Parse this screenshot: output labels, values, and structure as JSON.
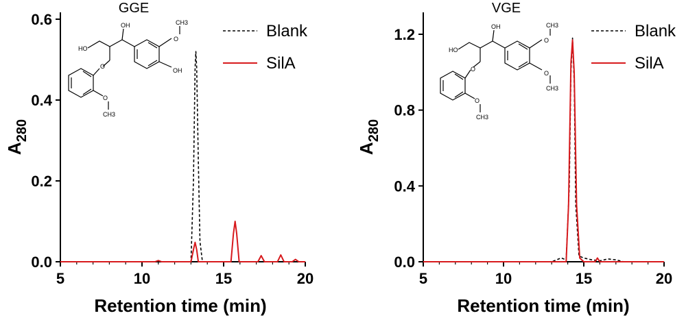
{
  "chart_data": [
    {
      "type": "line",
      "title": "GGE",
      "xlabel": "Retention time (min)",
      "ylabel_main": "A",
      "ylabel_sub": "280",
      "xlim": [
        5,
        20
      ],
      "ylim": [
        0,
        0.6
      ],
      "x_ticks": [
        "5",
        "10",
        "15",
        "20"
      ],
      "y_ticks": [
        "0.0",
        "0.2",
        "0.4",
        "0.6"
      ],
      "grid": false,
      "legend_position": "top-right",
      "molecule_labels": [
        "HO",
        "OH",
        "O",
        "CH3",
        "OH",
        "O",
        "CH3",
        "O"
      ],
      "series": [
        {
          "name": "Blank",
          "color": "#000000",
          "dash": "dashed",
          "x": [
            5,
            10.8,
            11.0,
            11.2,
            13.0,
            13.15,
            13.25,
            13.3,
            13.35,
            13.45,
            13.55,
            13.7,
            15.0,
            20
          ],
          "y": [
            0,
            0,
            0.002,
            0,
            0,
            0.2,
            0.48,
            0.52,
            0.48,
            0.25,
            0.05,
            0,
            0,
            0
          ]
        },
        {
          "name": "SilA",
          "color": "#d7191c",
          "dash": "solid",
          "x": [
            5,
            10.8,
            11.0,
            11.2,
            13.0,
            13.15,
            13.25,
            13.35,
            13.45,
            15.45,
            15.6,
            15.7,
            15.8,
            15.95,
            17.1,
            17.3,
            17.5,
            18.3,
            18.5,
            18.7,
            19.2,
            19.4,
            19.6,
            20
          ],
          "y": [
            0,
            0,
            0.003,
            0,
            0,
            0.03,
            0.048,
            0.03,
            0,
            0,
            0.07,
            0.1,
            0.07,
            0,
            0,
            0.015,
            0,
            0,
            0.017,
            0,
            0,
            0.006,
            0,
            0
          ]
        }
      ]
    },
    {
      "type": "line",
      "title": "VGE",
      "xlabel": "Retention time (min)",
      "ylabel_main": "A",
      "ylabel_sub": "280",
      "xlim": [
        5,
        20
      ],
      "ylim": [
        0,
        1.3
      ],
      "x_ticks": [
        "5",
        "10",
        "15",
        "20"
      ],
      "y_ticks": [
        "0.0",
        "0.4",
        "0.8",
        "1.2"
      ],
      "grid": false,
      "legend_position": "top-right",
      "molecule_labels": [
        "HO",
        "OH",
        "O",
        "CH3",
        "O",
        "CH3",
        "O",
        "CH3",
        "O"
      ],
      "series": [
        {
          "name": "Blank",
          "color": "#000000",
          "dash": "dashed",
          "x": [
            5,
            13.0,
            13.3,
            13.6,
            13.9,
            14.1,
            14.2,
            14.3,
            14.4,
            14.5,
            14.7,
            15.0,
            15.5,
            16.0,
            16.5,
            17.0,
            17.5,
            20
          ],
          "y": [
            0,
            0,
            0.01,
            0.02,
            0.01,
            0.4,
            1.0,
            1.18,
            0.95,
            0.3,
            0.03,
            0.02,
            0.01,
            0.005,
            0.015,
            0.01,
            0,
            0
          ]
        },
        {
          "name": "SilA",
          "color": "#d7191c",
          "dash": "solid",
          "x": [
            5,
            13.9,
            14.05,
            14.2,
            14.3,
            14.4,
            14.55,
            14.75,
            15.0,
            15.7,
            15.85,
            16.0,
            20
          ],
          "y": [
            0,
            0,
            0.3,
            1.05,
            1.17,
            1.0,
            0.3,
            0.02,
            0,
            0,
            0.02,
            0,
            0
          ]
        }
      ]
    }
  ]
}
